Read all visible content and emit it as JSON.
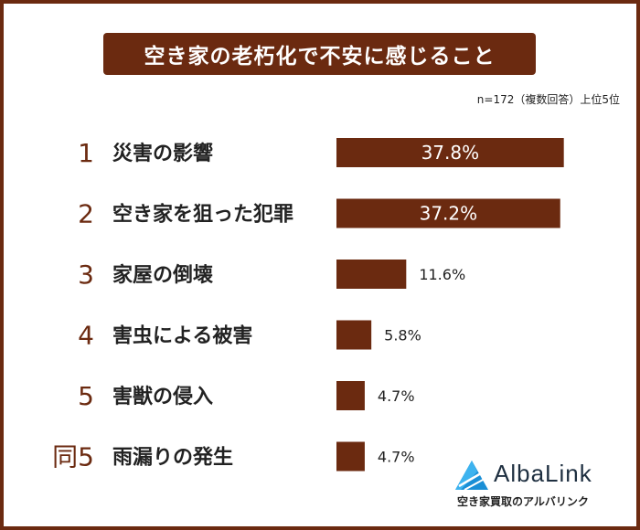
{
  "chart_data": {
    "type": "bar",
    "title": "空き家の老朽化で不安に感じること",
    "note": "n=172（複数回答）上位5位",
    "ranks": [
      "1",
      "2",
      "3",
      "4",
      "5",
      "同5"
    ],
    "categories": [
      "災害の影響",
      "空き家を狙った犯罪",
      "家屋の倒壊",
      "害虫による被害",
      "害獣の侵入",
      "雨漏りの発生"
    ],
    "values": [
      37.8,
      37.2,
      11.6,
      5.8,
      4.7,
      4.7
    ],
    "value_labels": [
      "37.8%",
      "37.2%",
      "11.6%",
      "5.8%",
      "4.7%",
      "4.7%"
    ],
    "xlim": [
      0,
      38
    ],
    "bar_color": "#6b2a10",
    "grid": false
  },
  "brand": {
    "name": "AlbaLink",
    "tagline": "空き家買取のアルバリンク"
  },
  "colors": {
    "primary": "#6b2a10",
    "logo_text": "#1e2f40",
    "logo_blue": "#1a8fd6"
  }
}
